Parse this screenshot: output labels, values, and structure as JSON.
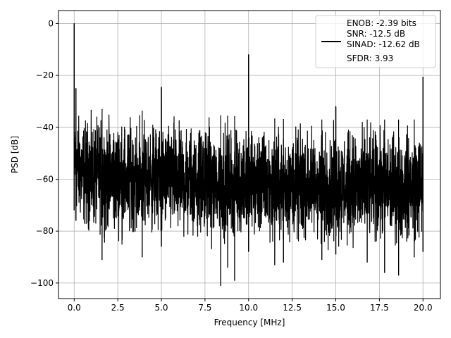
{
  "chart_data": {
    "type": "line",
    "xlabel": "Frequency [MHz]",
    "ylabel": "PSD [dB]",
    "xlim": [
      -0.9,
      21.0
    ],
    "ylim": [
      -106,
      5
    ],
    "xticks": [
      0.0,
      2.5,
      5.0,
      7.5,
      10.0,
      12.5,
      15.0,
      17.5,
      20.0
    ],
    "xtick_labels": [
      "0.0",
      "2.5",
      "5.0",
      "7.5",
      "10.0",
      "12.5",
      "15.0",
      "17.5",
      "20.0"
    ],
    "yticks": [
      0,
      -20,
      -40,
      -60,
      -80,
      -100
    ],
    "ytick_labels": [
      "0",
      "−20",
      "−40",
      "−60",
      "−80",
      "−100"
    ],
    "grid": true,
    "legend_position": "top-right",
    "legend_lines": [
      "ENOB: -2.39 bits",
      "SNR: -12.5 dB",
      "SINAD: -12.62 dB",
      "SFDR: 3.93"
    ],
    "series": [
      {
        "color": "#000000",
        "noise_band": {
          "x": [
            0.0,
            0.1,
            0.2,
            0.5,
            1.0,
            2.5,
            5.0,
            7.5,
            10.0,
            12.5,
            15.0,
            17.5,
            20.0
          ],
          "upper": [
            -27,
            -32,
            -31,
            -32,
            -33,
            -33,
            -34,
            -35,
            -36,
            -37,
            -37,
            -37,
            -37
          ],
          "lower": [
            -72,
            -76,
            -80,
            -83,
            -84,
            -85,
            -86,
            -87,
            -88,
            -88,
            -89,
            -89,
            -88
          ]
        },
        "spurs": [
          {
            "x": 0.0,
            "y": 0.0
          },
          {
            "x": 0.1,
            "y": -25.0
          },
          {
            "x": 5.0,
            "y": -24.5
          },
          {
            "x": 10.0,
            "y": -12.0
          },
          {
            "x": 15.0,
            "y": -32.0
          },
          {
            "x": 20.0,
            "y": -20.5
          }
        ],
        "dips": [
          {
            "x": 8.4,
            "y": -101.0
          },
          {
            "x": 9.2,
            "y": -99.0
          },
          {
            "x": 8.8,
            "y": -94.0
          },
          {
            "x": 1.6,
            "y": -91.0
          },
          {
            "x": 3.9,
            "y": -90.0
          },
          {
            "x": 11.5,
            "y": -93.0
          },
          {
            "x": 12.0,
            "y": -92.0
          },
          {
            "x": 14.2,
            "y": -91.0
          },
          {
            "x": 16.8,
            "y": -92.0
          },
          {
            "x": 17.8,
            "y": -96.0
          },
          {
            "x": 18.6,
            "y": -97.0
          },
          {
            "x": 19.5,
            "y": -90.0
          }
        ]
      }
    ]
  }
}
